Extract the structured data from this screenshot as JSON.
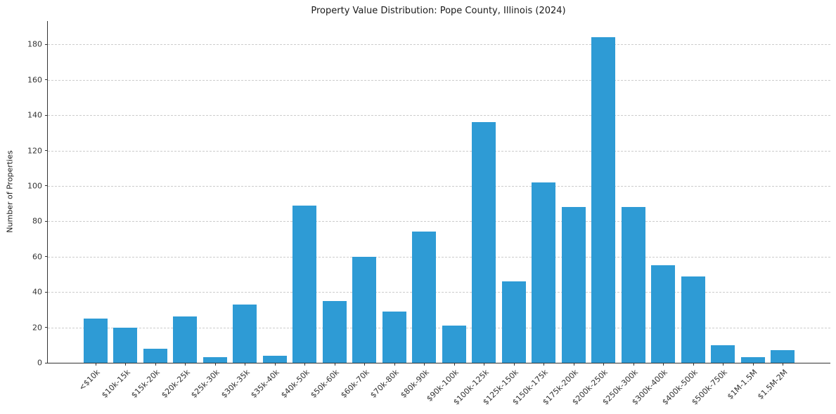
{
  "chart_data": {
    "type": "bar",
    "title": "Property Value Distribution: Pope County, Illinois (2024)",
    "xlabel": "",
    "ylabel": "Number of Properties",
    "categories": [
      "<$10k",
      "$10k-15k",
      "$15k-20k",
      "$20k-25k",
      "$25k-30k",
      "$30k-35k",
      "$35k-40k",
      "$40k-50k",
      "$50k-60k",
      "$60k-70k",
      "$70k-80k",
      "$80k-90k",
      "$90k-100k",
      "$100k-125k",
      "$125k-150k",
      "$150k-175k",
      "$175k-200k",
      "$200k-250k",
      "$250k-300k",
      "$300k-400k",
      "$400k-500k",
      "$500k-750k",
      "$1M-1.5M",
      "$1.5M-2M"
    ],
    "values": [
      25,
      20,
      8,
      26,
      3,
      33,
      4,
      89,
      35,
      60,
      29,
      74,
      21,
      136,
      46,
      102,
      88,
      184,
      88,
      55,
      49,
      10,
      3,
      7
    ],
    "yticks": [
      0,
      20,
      40,
      60,
      80,
      100,
      120,
      140,
      160,
      180
    ],
    "ylim": [
      0,
      193.2
    ],
    "bar_color": "#2E9BD5",
    "grid": true,
    "grid_style": "dashed",
    "grid_color": "#cccccc",
    "axis_color": "#333333",
    "legend": "none"
  }
}
